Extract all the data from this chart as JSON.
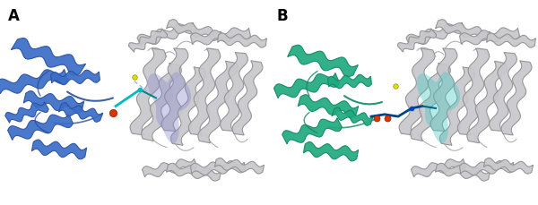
{
  "figure_width": 6.0,
  "figure_height": 2.3,
  "dpi": 100,
  "background_color": "#ffffff",
  "panel_A": {
    "label": "A",
    "label_fontsize": 12,
    "label_fontweight": "bold",
    "main_color": "#c8c8cc",
    "main_edge": "#909090",
    "reductase_color": "#3a6ec8",
    "reductase_edge": "#2a50a0",
    "channel_color": "#8888cc",
    "channel_alpha": 0.38,
    "iron_color": "#dd3300",
    "sulfur_color": "#dddd00",
    "ligand_color": "#00bbbb",
    "ligand2_color": "#0088aa"
  },
  "panel_B": {
    "label": "B",
    "label_fontsize": 12,
    "label_fontweight": "bold",
    "main_color": "#c8c8cc",
    "main_edge": "#909090",
    "reductase_color": "#20aa80",
    "reductase_edge": "#108860",
    "channel_color": "#40c8c0",
    "channel_alpha": 0.38,
    "iron_color": "#dd3300",
    "sulfur_color": "#dddd00",
    "ligand_color": "#0088aa",
    "ligand2_color": "#004488"
  }
}
